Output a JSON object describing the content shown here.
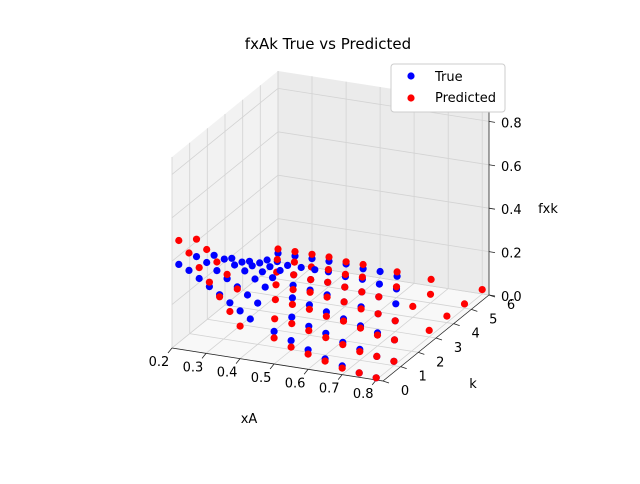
{
  "chart_data": {
    "type": "scatter",
    "projection": "3d",
    "title": "fxAk True vs Predicted",
    "xlabel": "xA",
    "ylabel": "k",
    "zlabel": "fxk",
    "xlim": [
      0.2,
      0.82
    ],
    "ylim": [
      0,
      6
    ],
    "zlim": [
      0,
      0.88
    ],
    "x_ticks": [
      "0.2",
      "0.3",
      "0.4",
      "0.5",
      "0.6",
      "0.7",
      "0.8"
    ],
    "y_ticks": [
      "0",
      "1",
      "2",
      "3",
      "4",
      "5",
      "6"
    ],
    "z_ticks": [
      "0.0",
      "0.2",
      "0.4",
      "0.6",
      "0.8"
    ],
    "grid": true,
    "legend_position": "top-right",
    "series": [
      {
        "name": "True",
        "color": "#0000ff",
        "points": [
          [
            0.22,
            0,
            0.39
          ],
          [
            0.25,
            0,
            0.37
          ],
          [
            0.28,
            0,
            0.34
          ],
          [
            0.31,
            0,
            0.31
          ],
          [
            0.34,
            0,
            0.28
          ],
          [
            0.37,
            0,
            0.25
          ],
          [
            0.4,
            0,
            0.22
          ],
          [
            0.43,
            0,
            0.19
          ],
          [
            0.22,
            1,
            0.36
          ],
          [
            0.25,
            1,
            0.34
          ],
          [
            0.28,
            1,
            0.31
          ],
          [
            0.31,
            1,
            0.28
          ],
          [
            0.34,
            1,
            0.25
          ],
          [
            0.37,
            1,
            0.22
          ],
          [
            0.4,
            1,
            0.19
          ],
          [
            0.22,
            2,
            0.3
          ],
          [
            0.25,
            2,
            0.29
          ],
          [
            0.28,
            2,
            0.27
          ],
          [
            0.31,
            2,
            0.25
          ],
          [
            0.34,
            2,
            0.22
          ],
          [
            0.37,
            2,
            0.19
          ],
          [
            0.22,
            3,
            0.22
          ],
          [
            0.25,
            3,
            0.21
          ],
          [
            0.28,
            3,
            0.2
          ],
          [
            0.31,
            3,
            0.18
          ],
          [
            0.34,
            3,
            0.16
          ],
          [
            0.22,
            4,
            0.14
          ],
          [
            0.25,
            4,
            0.14
          ],
          [
            0.28,
            4,
            0.13
          ],
          [
            0.31,
            4,
            0.12
          ],
          [
            0.22,
            5,
            0.08
          ],
          [
            0.25,
            5,
            0.08
          ],
          [
            0.28,
            5,
            0.07
          ],
          [
            0.5,
            0,
            0.15
          ],
          [
            0.55,
            0,
            0.12
          ],
          [
            0.6,
            0,
            0.09
          ],
          [
            0.65,
            0,
            0.06
          ],
          [
            0.7,
            0,
            0.04
          ],
          [
            0.75,
            0,
            0.02
          ],
          [
            0.8,
            0,
            0.01
          ],
          [
            0.5,
            1,
            0.15
          ],
          [
            0.55,
            1,
            0.12
          ],
          [
            0.6,
            1,
            0.1
          ],
          [
            0.65,
            1,
            0.07
          ],
          [
            0.7,
            1,
            0.05
          ],
          [
            0.75,
            1,
            0.03
          ],
          [
            0.8,
            1,
            0.02
          ],
          [
            0.45,
            2,
            0.16
          ],
          [
            0.5,
            2,
            0.14
          ],
          [
            0.55,
            2,
            0.12
          ],
          [
            0.6,
            2,
            0.1
          ],
          [
            0.65,
            2,
            0.08
          ],
          [
            0.7,
            2,
            0.06
          ],
          [
            0.75,
            2,
            0.04
          ],
          [
            0.4,
            3,
            0.14
          ],
          [
            0.45,
            3,
            0.13
          ],
          [
            0.5,
            3,
            0.12
          ],
          [
            0.55,
            3,
            0.1
          ],
          [
            0.6,
            3,
            0.09
          ],
          [
            0.65,
            3,
            0.07
          ],
          [
            0.7,
            3,
            0.05
          ],
          [
            0.35,
            4,
            0.11
          ],
          [
            0.4,
            4,
            0.1
          ],
          [
            0.45,
            4,
            0.1
          ],
          [
            0.5,
            4,
            0.09
          ],
          [
            0.55,
            4,
            0.08
          ],
          [
            0.6,
            4,
            0.07
          ],
          [
            0.65,
            4,
            0.05
          ],
          [
            0.32,
            5,
            0.07
          ],
          [
            0.36,
            5,
            0.07
          ],
          [
            0.4,
            5,
            0.07
          ],
          [
            0.45,
            5,
            0.06
          ],
          [
            0.5,
            5,
            0.06
          ],
          [
            0.55,
            5,
            0.05
          ],
          [
            0.6,
            5,
            0.04
          ],
          [
            0.2,
            6,
            0.04
          ],
          [
            0.25,
            6,
            0.04
          ],
          [
            0.3,
            6,
            0.04
          ],
          [
            0.35,
            6,
            0.04
          ],
          [
            0.4,
            6,
            0.04
          ],
          [
            0.45,
            6,
            0.03
          ],
          [
            0.5,
            6,
            0.03
          ],
          [
            0.55,
            6,
            0.02
          ]
        ]
      },
      {
        "name": "Predicted",
        "color": "#ff0000",
        "points": [
          [
            0.22,
            0,
            0.5
          ],
          [
            0.25,
            0,
            0.45
          ],
          [
            0.28,
            0,
            0.39
          ],
          [
            0.31,
            0,
            0.33
          ],
          [
            0.34,
            0,
            0.27
          ],
          [
            0.37,
            0,
            0.21
          ],
          [
            0.4,
            0,
            0.15
          ],
          [
            0.22,
            1,
            0.44
          ],
          [
            0.25,
            1,
            0.4
          ],
          [
            0.28,
            1,
            0.35
          ],
          [
            0.31,
            1,
            0.3
          ],
          [
            0.34,
            1,
            0.24
          ],
          [
            0.5,
            0,
            0.12
          ],
          [
            0.55,
            0,
            0.09
          ],
          [
            0.6,
            0,
            0.07
          ],
          [
            0.65,
            0,
            0.05
          ],
          [
            0.7,
            0,
            0.03
          ],
          [
            0.75,
            0,
            0.02
          ],
          [
            0.8,
            0,
            0.01
          ],
          [
            0.45,
            1,
            0.13
          ],
          [
            0.5,
            1,
            0.12
          ],
          [
            0.55,
            1,
            0.1
          ],
          [
            0.6,
            1,
            0.08
          ],
          [
            0.65,
            1,
            0.06
          ],
          [
            0.7,
            1,
            0.04
          ],
          [
            0.75,
            1,
            0.03
          ],
          [
            0.8,
            1,
            0.02
          ],
          [
            0.4,
            2,
            0.14
          ],
          [
            0.45,
            2,
            0.13
          ],
          [
            0.5,
            2,
            0.12
          ],
          [
            0.55,
            2,
            0.1
          ],
          [
            0.6,
            2,
            0.09
          ],
          [
            0.65,
            2,
            0.07
          ],
          [
            0.7,
            2,
            0.05
          ],
          [
            0.75,
            2,
            0.04
          ],
          [
            0.35,
            3,
            0.13
          ],
          [
            0.4,
            3,
            0.12
          ],
          [
            0.45,
            3,
            0.12
          ],
          [
            0.5,
            3,
            0.11
          ],
          [
            0.55,
            3,
            0.1
          ],
          [
            0.6,
            3,
            0.08
          ],
          [
            0.65,
            3,
            0.07
          ],
          [
            0.7,
            3,
            0.05
          ],
          [
            0.8,
            3,
            0.03
          ],
          [
            0.3,
            4,
            0.11
          ],
          [
            0.35,
            4,
            0.11
          ],
          [
            0.4,
            4,
            0.1
          ],
          [
            0.45,
            4,
            0.1
          ],
          [
            0.5,
            4,
            0.09
          ],
          [
            0.55,
            4,
            0.08
          ],
          [
            0.6,
            4,
            0.07
          ],
          [
            0.7,
            4,
            0.05
          ],
          [
            0.8,
            4,
            0.03
          ],
          [
            0.25,
            5,
            0.09
          ],
          [
            0.3,
            5,
            0.09
          ],
          [
            0.35,
            5,
            0.08
          ],
          [
            0.4,
            5,
            0.08
          ],
          [
            0.45,
            5,
            0.07
          ],
          [
            0.5,
            5,
            0.07
          ],
          [
            0.6,
            5,
            0.05
          ],
          [
            0.7,
            5,
            0.04
          ],
          [
            0.8,
            5,
            0.02
          ],
          [
            0.2,
            6,
            0.06
          ],
          [
            0.25,
            6,
            0.06
          ],
          [
            0.3,
            6,
            0.06
          ],
          [
            0.35,
            6,
            0.06
          ],
          [
            0.4,
            6,
            0.05
          ],
          [
            0.45,
            6,
            0.05
          ],
          [
            0.55,
            6,
            0.04
          ],
          [
            0.65,
            6,
            0.03
          ],
          [
            0.8,
            6,
            0.02
          ]
        ]
      }
    ]
  }
}
